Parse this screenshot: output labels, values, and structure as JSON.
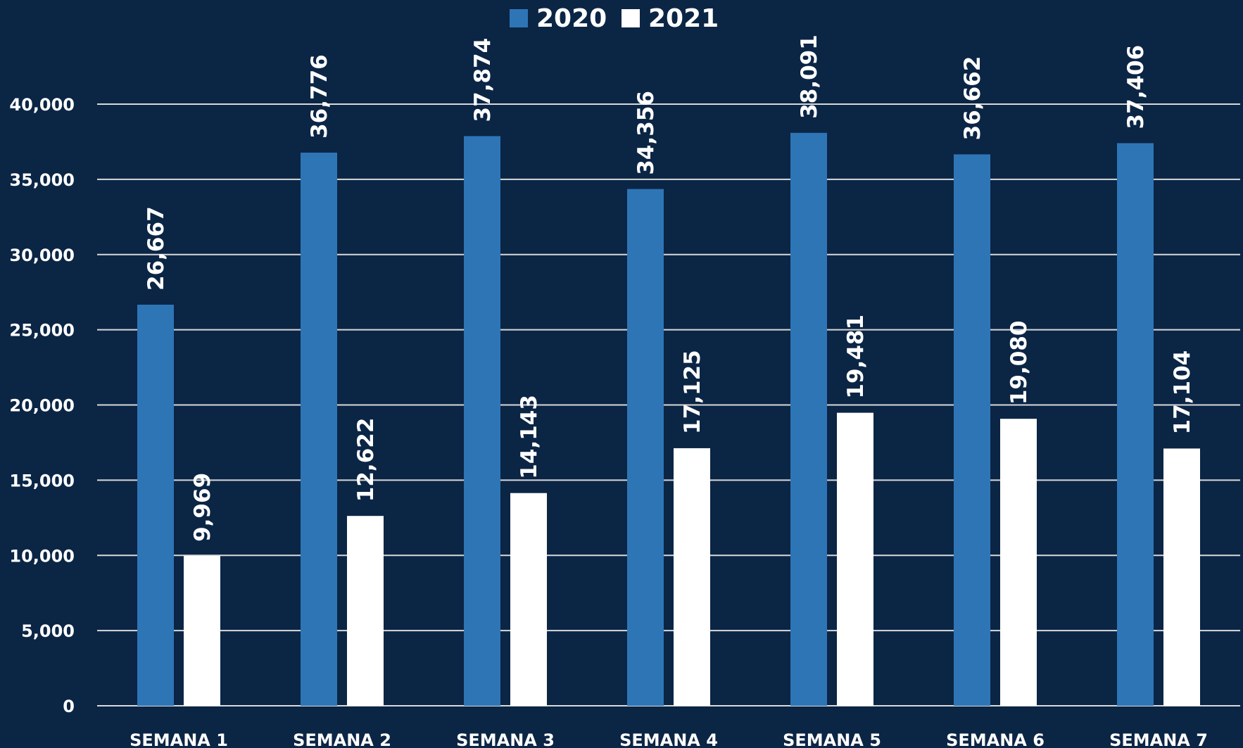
{
  "chart_data": {
    "type": "bar",
    "categories": [
      "SEMANA 1",
      "SEMANA 2",
      "SEMANA 3",
      "SEMANA 4",
      "SEMANA 5",
      "SEMANA 6",
      "SEMANA 7"
    ],
    "series": [
      {
        "name": "2020",
        "color": "#2e75b6",
        "values": [
          26667,
          36776,
          37874,
          34356,
          38091,
          36662,
          37406
        ],
        "labels": [
          "26,667",
          "36,776",
          "37,874",
          "34,356",
          "38,091",
          "36,662",
          "37,406"
        ]
      },
      {
        "name": "2021",
        "color": "#ffffff",
        "values": [
          9969,
          12622,
          14143,
          17125,
          19481,
          19080,
          17104
        ],
        "labels": [
          "9,969",
          "12,622",
          "14,143",
          "17,125",
          "19,481",
          "19,080",
          "17,104"
        ]
      }
    ],
    "ylim": [
      0,
      40000
    ],
    "yticks": [
      0,
      5000,
      10000,
      15000,
      20000,
      25000,
      30000,
      35000,
      40000
    ],
    "ytick_labels": [
      "0",
      "5,000",
      "10,000",
      "15,000",
      "20,000",
      "25,000",
      "30,000",
      "35,000",
      "40,000"
    ],
    "grid": true,
    "legend_position": "top-center",
    "background_color": "#0b2545",
    "gridline_color": "#d9d9d9",
    "text_color": "#ffffff"
  }
}
